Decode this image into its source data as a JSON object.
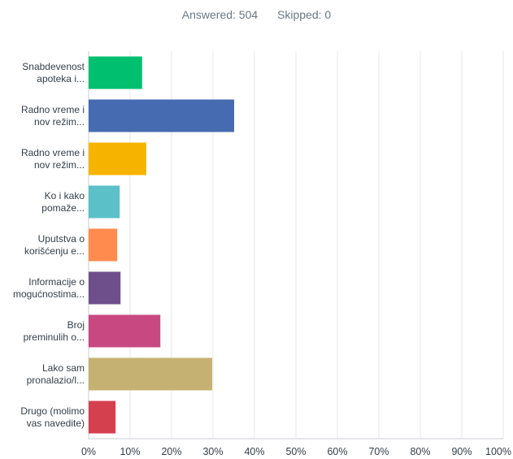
{
  "summary": {
    "answered": "Answered: 504",
    "skipped": "Skipped: 0"
  },
  "chart_data": {
    "type": "bar",
    "orientation": "horizontal",
    "categories": [
      [
        "Snabdevenost",
        "apoteka i..."
      ],
      [
        "Radno vreme i",
        "nov režim..."
      ],
      [
        "Radno vreme i",
        "nov režim..."
      ],
      [
        "Ko i kako",
        "pomaže..."
      ],
      [
        "Uputstva o",
        "korišćenju e..."
      ],
      [
        "Informacije o",
        "mogućnostima..."
      ],
      [
        "Broj",
        "preminulih o..."
      ],
      [
        "Lako sam",
        "pronalazio/l..."
      ],
      [
        "Drugo (molimo",
        "vas navedite)"
      ]
    ],
    "values": [
      12.9,
      35.1,
      13.9,
      7.5,
      6.9,
      7.7,
      17.3,
      29.8,
      6.5
    ],
    "colors": [
      "#00bf6f",
      "#466bb0",
      "#f6b400",
      "#5bc0c8",
      "#ff8b4f",
      "#6e4f8b",
      "#c84882",
      "#c5b171",
      "#d5404f"
    ],
    "xlim": [
      0,
      100
    ],
    "xticks": [
      "0%",
      "10%",
      "20%",
      "30%",
      "40%",
      "50%",
      "60%",
      "70%",
      "80%",
      "90%",
      "100%"
    ],
    "grid": true
  }
}
